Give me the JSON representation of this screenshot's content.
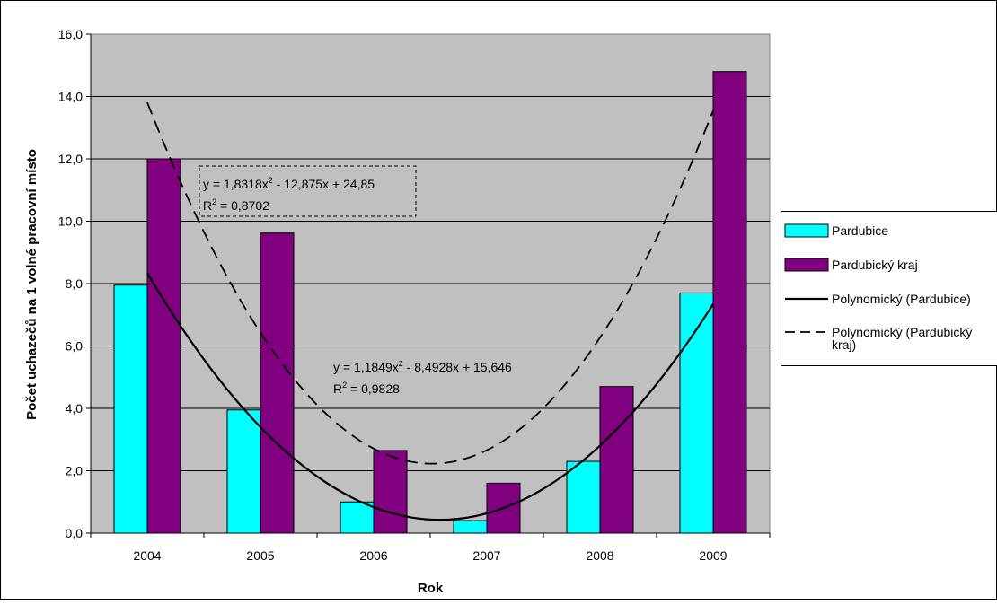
{
  "chart_data": {
    "type": "bar",
    "categories": [
      "2004",
      "2005",
      "2006",
      "2007",
      "2008",
      "2009"
    ],
    "series": [
      {
        "name": "Pardubice",
        "color": "#00ffff",
        "values": [
          7.95,
          3.95,
          1.0,
          0.4,
          2.3,
          7.7
        ]
      },
      {
        "name": "Pardubický kraj",
        "color": "#800080",
        "values": [
          12.0,
          9.62,
          2.65,
          1.6,
          4.7,
          14.8
        ]
      }
    ],
    "trendlines": [
      {
        "name": "Polynomický (Pardubice)",
        "series": "Pardubice",
        "style": "solid",
        "coefficients": [
          1.1849,
          -8.4928,
          15.646
        ],
        "equation": "y = 1,1849x",
        "equation_tail": " - 8,4928x + 15,646",
        "r2_value": " = 0,9828"
      },
      {
        "name": "Polynomický (Pardubický kraj)",
        "series": "Pardubický kraj",
        "style": "dashed",
        "coefficients": [
          1.8318,
          -12.875,
          24.85
        ],
        "equation": "y = 1,8318x",
        "equation_tail": " - 12,875x + 24,85",
        "r2_value": " = 0,8702"
      }
    ],
    "xlabel": "Rok",
    "ylabel": "Počet uchazečů na 1 volné pracovní místo",
    "ylim": [
      0,
      16
    ],
    "yticks": [
      "0,0",
      "2,0",
      "4,0",
      "6,0",
      "8,0",
      "10,0",
      "12,0",
      "14,0",
      "16,0"
    ],
    "grid": true,
    "plot_background": "#c0c0c0",
    "legend": {
      "position": "right",
      "items": [
        {
          "label": "Pardubice",
          "kind": "box",
          "color": "#00ffff"
        },
        {
          "label": "Pardubický kraj",
          "kind": "box",
          "color": "#800080"
        },
        {
          "label": "Polynomický (Pardubice)",
          "kind": "solid-line"
        },
        {
          "label": "Polynomický (Pardubický",
          "label2": "kraj)",
          "kind": "dashed-line"
        }
      ]
    }
  }
}
